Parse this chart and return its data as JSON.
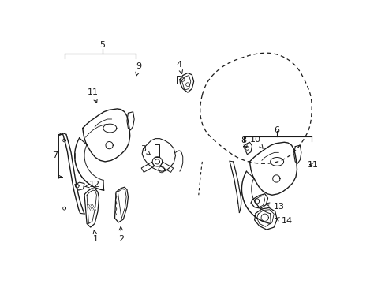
{
  "background_color": "#ffffff",
  "line_color": "#1a1a1a",
  "figsize": [
    4.89,
    3.6
  ],
  "dpi": 100,
  "labels": {
    "1": [
      77,
      338,
      77,
      323,
      77,
      310
    ],
    "2": [
      118,
      338,
      118,
      323,
      116,
      308
    ],
    "3": [
      157,
      189,
      157,
      175,
      172,
      200
    ],
    "4": [
      214,
      52,
      214,
      38,
      225,
      68
    ],
    "5": [
      88,
      18,
      null,
      null,
      null,
      null
    ],
    "6": [
      368,
      168,
      null,
      null,
      null,
      null
    ],
    "7": [
      10,
      200,
      null,
      null,
      null,
      null
    ],
    "8": [
      323,
      185,
      323,
      172,
      330,
      192
    ],
    "9": [
      143,
      65,
      143,
      52,
      137,
      72
    ],
    "10": [
      340,
      185,
      340,
      172,
      347,
      200
    ],
    "11_left": [
      73,
      110,
      73,
      97,
      87,
      118
    ],
    "11_right": [
      428,
      215,
      null,
      null,
      null,
      null
    ],
    "12": [
      68,
      247,
      82,
      247,
      58,
      252
    ],
    "13": [
      364,
      286,
      378,
      286,
      352,
      278
    ],
    "14": [
      378,
      310,
      392,
      310,
      368,
      303
    ]
  }
}
